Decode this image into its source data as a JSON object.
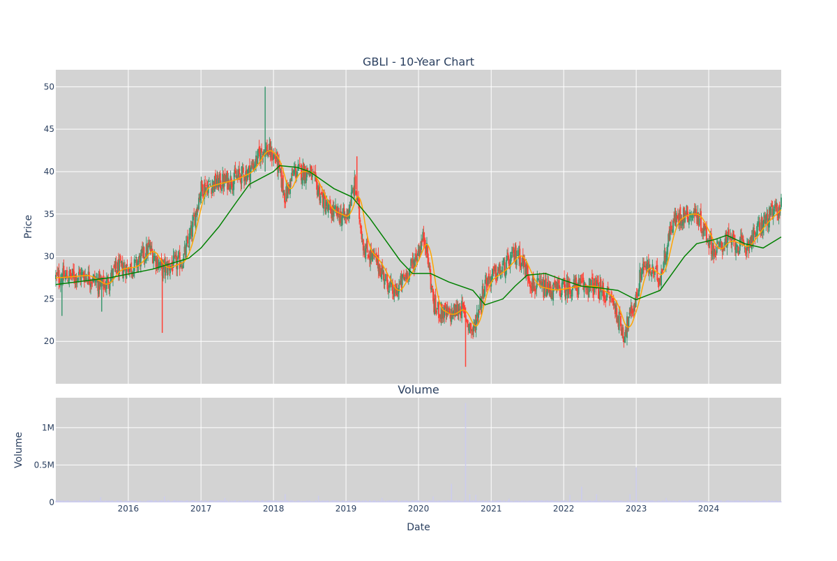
{
  "chart_data": [
    {
      "type": "candlestick",
      "title": "GBLI - 10-Year Chart",
      "xlabel": "",
      "ylabel": "Price",
      "xlim": [
        "2015-01-01",
        "2024-12-31"
      ],
      "ylim": [
        15,
        52
      ],
      "y_ticks": [
        20,
        25,
        30,
        35,
        40,
        45,
        50
      ],
      "grid": true,
      "colors": {
        "background": "#d3d3d3",
        "up": "#3d9970",
        "down": "#ff4136",
        "ma_short": "#ffa500",
        "ma_long": "#008000"
      },
      "price_close_keypoints": [
        [
          "2015-01-01",
          27.5
        ],
        [
          "2015-06-01",
          27.8
        ],
        [
          "2015-09-01",
          26.5
        ],
        [
          "2015-11-01",
          28.5
        ],
        [
          "2016-02-01",
          28.8
        ],
        [
          "2016-04-15",
          31.0
        ],
        [
          "2016-06-20",
          28.5
        ],
        [
          "2016-10-01",
          29.5
        ],
        [
          "2016-11-15",
          33.0
        ],
        [
          "2016-12-31",
          38.0
        ],
        [
          "2017-03-01",
          38.5
        ],
        [
          "2017-06-01",
          39.0
        ],
        [
          "2017-09-01",
          40.0
        ],
        [
          "2017-11-15",
          42.8
        ],
        [
          "2018-01-15",
          41.5
        ],
        [
          "2018-03-01",
          37.0
        ],
        [
          "2018-04-15",
          40.0
        ],
        [
          "2018-07-01",
          40.0
        ],
        [
          "2018-10-01",
          35.5
        ],
        [
          "2019-01-01",
          34.5
        ],
        [
          "2019-02-15",
          38.5
        ],
        [
          "2019-04-01",
          31.0
        ],
        [
          "2019-06-01",
          29.5
        ],
        [
          "2019-09-01",
          25.5
        ],
        [
          "2019-12-01",
          29.0
        ],
        [
          "2020-02-01",
          32.5
        ],
        [
          "2020-03-20",
          24.0
        ],
        [
          "2020-06-01",
          23.0
        ],
        [
          "2020-08-01",
          24.0
        ],
        [
          "2020-10-01",
          21.0
        ],
        [
          "2020-12-01",
          27.0
        ],
        [
          "2021-03-01",
          28.5
        ],
        [
          "2021-05-15",
          30.5
        ],
        [
          "2021-08-01",
          26.5
        ],
        [
          "2021-11-01",
          26.0
        ],
        [
          "2022-03-01",
          26.5
        ],
        [
          "2022-06-01",
          26.5
        ],
        [
          "2022-09-01",
          25.0
        ],
        [
          "2022-10-31",
          20.8
        ],
        [
          "2022-12-31",
          25.0
        ],
        [
          "2023-02-01",
          29.0
        ],
        [
          "2023-05-01",
          27.5
        ],
        [
          "2023-07-01",
          34.0
        ],
        [
          "2023-09-01",
          35.0
        ],
        [
          "2023-10-31",
          35.0
        ],
        [
          "2024-02-01",
          30.5
        ],
        [
          "2024-04-01",
          32.0
        ],
        [
          "2024-07-01",
          31.0
        ],
        [
          "2024-10-01",
          34.0
        ],
        [
          "2024-12-31",
          36.0
        ]
      ],
      "ma_long_keypoints": [
        [
          "2015-01-01",
          26.7
        ],
        [
          "2015-10-01",
          27.5
        ],
        [
          "2016-05-01",
          28.5
        ],
        [
          "2016-11-01",
          29.8
        ],
        [
          "2017-01-01",
          31.0
        ],
        [
          "2017-04-01",
          33.5
        ],
        [
          "2017-07-01",
          36.5
        ],
        [
          "2017-09-01",
          38.5
        ],
        [
          "2018-01-01",
          40.0
        ],
        [
          "2018-02-01",
          40.7
        ],
        [
          "2018-05-01",
          40.5
        ],
        [
          "2018-07-01",
          40.0
        ],
        [
          "2018-09-01",
          39.0
        ],
        [
          "2018-11-01",
          38.0
        ],
        [
          "2019-02-01",
          37.0
        ],
        [
          "2019-05-01",
          34.5
        ],
        [
          "2019-08-01",
          31.5
        ],
        [
          "2019-10-01",
          29.5
        ],
        [
          "2019-12-01",
          28.0
        ],
        [
          "2020-03-01",
          28.0
        ],
        [
          "2020-06-01",
          27.0
        ],
        [
          "2020-10-01",
          26.0
        ],
        [
          "2020-12-01",
          24.3
        ],
        [
          "2021-03-01",
          25.0
        ],
        [
          "2021-05-01",
          26.5
        ],
        [
          "2021-07-01",
          27.8
        ],
        [
          "2021-10-01",
          28.0
        ],
        [
          "2022-01-01",
          27.2
        ],
        [
          "2022-04-01",
          26.5
        ],
        [
          "2022-07-01",
          26.3
        ],
        [
          "2022-10-01",
          26.0
        ],
        [
          "2022-12-31",
          24.9
        ],
        [
          "2023-05-01",
          26.0
        ],
        [
          "2023-07-01",
          28.0
        ],
        [
          "2023-09-01",
          30.0
        ],
        [
          "2023-11-01",
          31.5
        ],
        [
          "2024-02-01",
          32.0
        ],
        [
          "2024-04-01",
          32.5
        ],
        [
          "2024-07-01",
          31.5
        ],
        [
          "2024-10-01",
          31.0
        ],
        [
          "2024-12-31",
          32.3
        ]
      ]
    },
    {
      "type": "bar",
      "title": "Volume",
      "xlabel": "Date",
      "ylabel": "Volume",
      "ylim": [
        0,
        1400000
      ],
      "y_ticks": [
        {
          "value": 0,
          "label": "0"
        },
        {
          "value": 500000,
          "label": "0.5M"
        },
        {
          "value": 1000000,
          "label": "1M"
        }
      ],
      "x_ticks": [
        "2016",
        "2017",
        "2018",
        "2019",
        "2020",
        "2021",
        "2022",
        "2023",
        "2024"
      ],
      "colors": {
        "background": "#d3d3d3",
        "bars": "#ccccee"
      },
      "volume_spikes": [
        [
          "2015-08-15",
          70000
        ],
        [
          "2016-07-01",
          80000
        ],
        [
          "2017-05-01",
          60000
        ],
        [
          "2018-03-01",
          110000
        ],
        [
          "2018-08-15",
          90000
        ],
        [
          "2019-07-01",
          60000
        ],
        [
          "2020-03-15",
          80000
        ],
        [
          "2020-06-15",
          250000
        ],
        [
          "2020-08-25",
          1330000
        ],
        [
          "2020-09-15",
          110000
        ],
        [
          "2020-10-15",
          100000
        ],
        [
          "2021-04-01",
          50000
        ],
        [
          "2022-02-01",
          100000
        ],
        [
          "2022-04-01",
          210000
        ],
        [
          "2022-06-15",
          110000
        ],
        [
          "2022-12-01",
          110000
        ],
        [
          "2023-01-01",
          470000
        ],
        [
          "2023-06-01",
          60000
        ]
      ],
      "volume_baseline": 15000
    }
  ]
}
